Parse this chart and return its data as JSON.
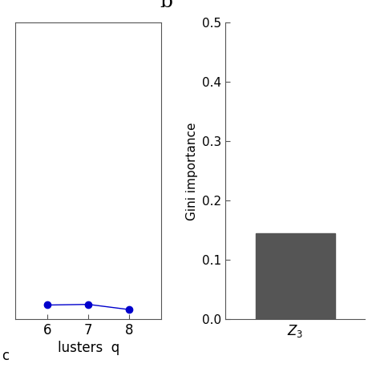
{
  "left_panel": {
    "x": [
      6,
      7,
      8
    ],
    "y": [
      0.062,
      0.063,
      0.055
    ],
    "line_color": "#0000CC",
    "marker": "o",
    "markersize": 6,
    "xlim": [
      5.2,
      8.8
    ],
    "ylim": [
      0.04,
      0.5
    ],
    "xticks": [
      6,
      7,
      8
    ],
    "xlabel": "lusters  q",
    "spine_color": "#555555"
  },
  "right_panel": {
    "bar_value": 0.145,
    "bar_color": "#555555",
    "bar_label": "Z_3",
    "ylabel": "Gini importance",
    "ylim": [
      0.0,
      0.5
    ],
    "yticks": [
      0.0,
      0.1,
      0.2,
      0.3,
      0.4,
      0.5
    ],
    "panel_label": "b",
    "spine_color": "#555555"
  },
  "bg_color": "#ffffff",
  "figsize": [
    4.74,
    4.74
  ],
  "dpi": 100
}
